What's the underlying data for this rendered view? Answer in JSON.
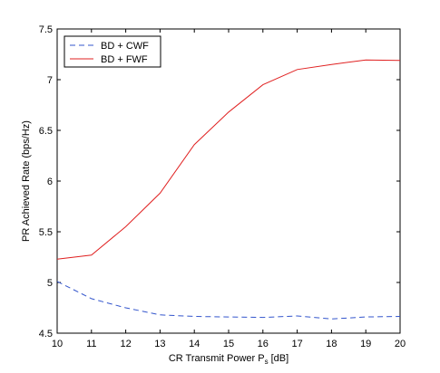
{
  "chart_data": {
    "type": "line",
    "title": "",
    "xlabel": "CR Transmit Power P",
    "xlabel_sub": "s",
    "xlabel_suffix": " [dB]",
    "ylabel": "PR Achieved Rate (bps/Hz)",
    "xlim": [
      10,
      20
    ],
    "ylim": [
      4.5,
      7.5
    ],
    "xticks": [
      10,
      11,
      12,
      13,
      14,
      15,
      16,
      17,
      18,
      19,
      20
    ],
    "yticks": [
      4.5,
      5,
      5.5,
      6,
      6.5,
      7,
      7.5
    ],
    "ytick_labels": [
      "4.5",
      "5",
      "5.5",
      "6",
      "6.5",
      "7",
      "7.5"
    ],
    "grid": false,
    "legend_position": "top-left",
    "x": [
      10,
      11,
      12,
      13,
      14,
      15,
      16,
      17,
      18,
      19,
      20
    ],
    "series": [
      {
        "name": "BD + CWF",
        "color": "#3355cc",
        "dash": "dashed",
        "values": [
          5.01,
          4.84,
          4.75,
          4.68,
          4.665,
          4.66,
          4.655,
          4.67,
          4.64,
          4.66,
          4.665
        ]
      },
      {
        "name": "BD + FWF",
        "color": "#e02020",
        "dash": "solid",
        "values": [
          5.23,
          5.27,
          5.55,
          5.88,
          6.36,
          6.68,
          6.95,
          7.1,
          7.15,
          7.195,
          7.19
        ]
      }
    ]
  }
}
